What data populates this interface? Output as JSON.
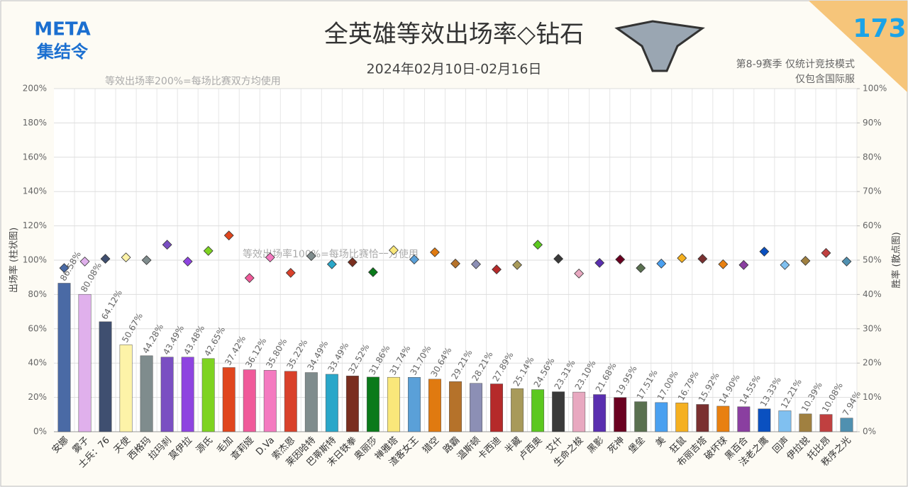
{
  "chart_data": {
    "type": "bar",
    "title": "全英雄等效出场率◇钻石",
    "subtitle": "2024年02月10日-02月16日",
    "badge": "173",
    "logo": [
      "META",
      "集结令"
    ],
    "notes": [
      "第8-9赛季 仅统计竞技模式",
      "仅包含国际服"
    ],
    "annotations": [
      "等效出场率200%=每场比赛双方均使用",
      "等效出场率100%=每场比赛恰一方使用"
    ],
    "ylabel": "出场率 (柱状图)",
    "y2label": "胜率 (散点图)",
    "categories": [
      "安娜",
      "雾子",
      "士兵：76",
      "天使",
      "西格玛",
      "拉玛刹",
      "莫伊拉",
      "源氏",
      "毛加",
      "查莉娅",
      "D.Va",
      "索杰恩",
      "莱因哈特",
      "巴蒂斯特",
      "末日铁拳",
      "奥丽莎",
      "禅雅塔",
      "渣客女王",
      "猎空",
      "路霸",
      "温斯顿",
      "卡西迪",
      "半藏",
      "卢西奥",
      "艾什",
      "生命之梭",
      "黑影",
      "死神",
      "堡垒",
      "美",
      "狂鼠",
      "布丽吉塔",
      "破坏球",
      "黑百合",
      "法老之鹰",
      "回声",
      "伊拉锐",
      "托比昂",
      "秩序之光"
    ],
    "colors": [
      "#4a6aa5",
      "#e0b0ec",
      "#3f4f70",
      "#fdf3a8",
      "#7f8c8d",
      "#7a4fc2",
      "#8e44e0",
      "#7ed321",
      "#e0461e",
      "#f05a9a",
      "#f47ac0",
      "#d9412b",
      "#7f8c8d",
      "#2aa7c9",
      "#7a2e1f",
      "#0a7a1a",
      "#f9e77a",
      "#5aa0d8",
      "#e07a10",
      "#b5722a",
      "#8c8fb5",
      "#b52a2a",
      "#a89a5a",
      "#5cc820",
      "#3a3a3a",
      "#e8a8c0",
      "#5a2fb0",
      "#6a0020",
      "#5a7050",
      "#4aa0f0",
      "#f5b020",
      "#7a3030",
      "#e88010",
      "#8a3fa0",
      "#0a50c0",
      "#80c0f0",
      "#a08040",
      "#c04040",
      "#5090b0"
    ],
    "series": [
      {
        "name": "出场率",
        "values": [
          86.58,
          80.08,
          64.12,
          50.67,
          44.28,
          43.49,
          43.48,
          42.65,
          37.42,
          36.12,
          35.8,
          35.22,
          34.49,
          33.49,
          32.52,
          31.86,
          31.74,
          31.7,
          30.64,
          29.21,
          28.21,
          27.89,
          25.14,
          24.56,
          23.31,
          23.1,
          21.68,
          19.95,
          17.51,
          17.0,
          16.79,
          15.92,
          14.9,
          14.55,
          13.33,
          12.21,
          10.39,
          10.08,
          7.94
        ],
        "value_labels": [
          "86.58%",
          "80.08%",
          "64.12%",
          "50.67%",
          "44.28%",
          "43.49%",
          "43.48%",
          "42.65%",
          "37.42%",
          "36.12%",
          "35.80%",
          "35.22%",
          "34.49%",
          "33.49%",
          "32.52%",
          "31.86%",
          "31.74%",
          "31.70%",
          "30.64%",
          "29.21%",
          "28.21%",
          "27.89%",
          "25.14%",
          "24.56%",
          "23.31%",
          "23.10%",
          "21.68%",
          "19.95%",
          "17.51%",
          "17.00%",
          "16.79%",
          "15.92%",
          "14.90%",
          "14.55%",
          "13.33%",
          "12.21%",
          "10.39%",
          "10.08%",
          "7.94%"
        ]
      },
      {
        "name": "胜率",
        "type": "scatter",
        "axis": "y2",
        "values": [
          47.7,
          49.6,
          50.4,
          50.8,
          50,
          54.5,
          49.6,
          52.7,
          57.2,
          44.8,
          50.8,
          46.3,
          51.2,
          48.8,
          49.4,
          46.5,
          52.9,
          50.2,
          52.3,
          49,
          48.8,
          47.3,
          48.6,
          54.5,
          50.4,
          46.1,
          49.2,
          50.2,
          47.7,
          49,
          50.6,
          50.4,
          48.8,
          48.6,
          52.5,
          48.6,
          49.8,
          52.1,
          49.6
        ]
      }
    ],
    "ylim": [
      0,
      200
    ],
    "yticks": [
      {
        "value": 0,
        "label": "0%"
      },
      {
        "value": 20,
        "label": "20%"
      },
      {
        "value": 40,
        "label": "40%"
      },
      {
        "value": 60,
        "label": "60%"
      },
      {
        "value": 80,
        "label": "80%"
      },
      {
        "value": 100,
        "label": "100%"
      },
      {
        "value": 120,
        "label": "120%"
      },
      {
        "value": 140,
        "label": "140%"
      },
      {
        "value": 160,
        "label": "160%"
      },
      {
        "value": 180,
        "label": "180%"
      },
      {
        "value": 200,
        "label": "200%"
      }
    ],
    "y2lim": [
      0,
      100
    ],
    "y2ticks": [
      {
        "value": 0,
        "label": "0%"
      },
      {
        "value": 10,
        "label": "10%"
      },
      {
        "value": 20,
        "label": "20%"
      },
      {
        "value": 30,
        "label": "30%"
      },
      {
        "value": 40,
        "label": "40%"
      },
      {
        "value": 50,
        "label": "50%"
      },
      {
        "value": 60,
        "label": "60%"
      },
      {
        "value": 70,
        "label": "70%"
      },
      {
        "value": 80,
        "label": "80%"
      },
      {
        "value": 90,
        "label": "90%"
      },
      {
        "value": 100,
        "label": "100%"
      }
    ],
    "grid": true
  }
}
